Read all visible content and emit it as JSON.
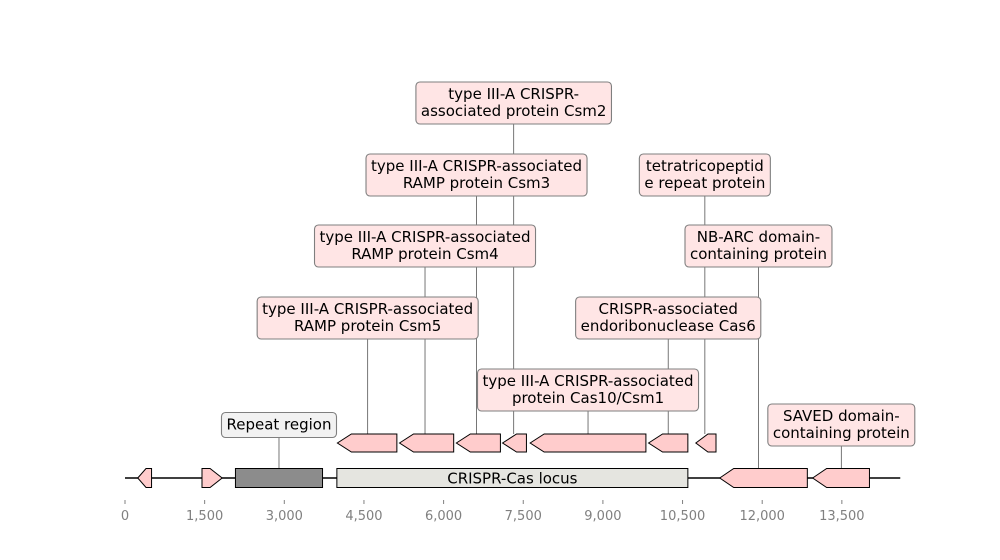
{
  "colors": {
    "gene_fill": "#ffcccc",
    "gene_stroke": "#000000",
    "label_fill": "#ffe5e5",
    "label_stroke": "#7f7f7f",
    "repeat_fill": "#8c8c8c",
    "repeat_label_fill": "#f2f2f2",
    "locus_fill": "#e5e5e0",
    "axis_color": "#808080"
  },
  "axis": {
    "range": [
      0,
      14600
    ],
    "ticks": [
      0,
      1500,
      3000,
      4500,
      6000,
      7500,
      9000,
      10500,
      12000,
      13500
    ],
    "tick_labels": [
      "0",
      "1,500",
      "3,000",
      "4,500",
      "6,000",
      "7,500",
      "9,000",
      "10,500",
      "12,000",
      "13,500"
    ]
  },
  "locus": {
    "label": "CRISPR-Cas locus",
    "start": 3990,
    "end": 10600
  },
  "repeat_region": {
    "label": "Repeat region",
    "start": 2080,
    "end": 3720
  },
  "genes_main_track": [
    {
      "start": 240,
      "end": 500,
      "strand": -1
    },
    {
      "start": 1450,
      "end": 1830,
      "strand": 1
    },
    {
      "start": 11200,
      "end": 12850,
      "strand": -1,
      "label_ref": "nbarc"
    },
    {
      "start": 12950,
      "end": 14020,
      "strand": -1,
      "label_ref": "saved"
    }
  ],
  "genes_upper_track": [
    {
      "start": 4000,
      "end": 5120,
      "strand": -1,
      "label_ref": "csm5"
    },
    {
      "start": 5170,
      "end": 6190,
      "strand": -1,
      "label_ref": "csm4"
    },
    {
      "start": 6240,
      "end": 7070,
      "strand": -1,
      "label_ref": "csm3"
    },
    {
      "start": 7110,
      "end": 7560,
      "strand": -1,
      "label_ref": "csm2"
    },
    {
      "start": 7630,
      "end": 9810,
      "strand": -1,
      "label_ref": "cas10"
    },
    {
      "start": 9860,
      "end": 10600,
      "strand": -1,
      "label_ref": "cas6"
    },
    {
      "start": 10750,
      "end": 11130,
      "strand": -1,
      "label_ref": "tpr"
    }
  ],
  "labels": [
    {
      "id": "csm2",
      "lines": [
        "type III-A CRISPR-",
        "associated protein Csm2"
      ],
      "level": 5,
      "anchor": 7320
    },
    {
      "id": "csm3",
      "lines": [
        "type III-A CRISPR-associated",
        "RAMP protein Csm3"
      ],
      "level": 4,
      "anchor": 6620
    },
    {
      "id": "tpr",
      "lines": [
        "tetratricopeptid",
        "e repeat protein"
      ],
      "level": 4,
      "anchor": 10920
    },
    {
      "id": "csm4",
      "lines": [
        "type III-A CRISPR-associated",
        "RAMP protein Csm4"
      ],
      "level": 3,
      "anchor": 5650
    },
    {
      "id": "nbarc",
      "lines": [
        "NB-ARC domain-",
        "containing protein"
      ],
      "level": 3,
      "anchor": 11930
    },
    {
      "id": "csm5",
      "lines": [
        "type III-A CRISPR-associated",
        "RAMP protein Csm5"
      ],
      "level": 2,
      "anchor": 4570
    },
    {
      "id": "cas6",
      "lines": [
        "CRISPR-associated",
        "endoribonuclease Cas6"
      ],
      "level": 2,
      "anchor": 10230
    },
    {
      "id": "cas10",
      "lines": [
        "type III-A CRISPR-associated",
        "protein Cas10/Csm1"
      ],
      "level": 1,
      "anchor": 8720
    },
    {
      "id": "saved",
      "lines": [
        "SAVED domain-",
        "containing protein"
      ],
      "level": 0,
      "anchor": 13490
    },
    {
      "id": "repeat",
      "lines": [
        "Repeat region"
      ],
      "level": 0,
      "anchor": 2900,
      "neutral": true
    }
  ]
}
